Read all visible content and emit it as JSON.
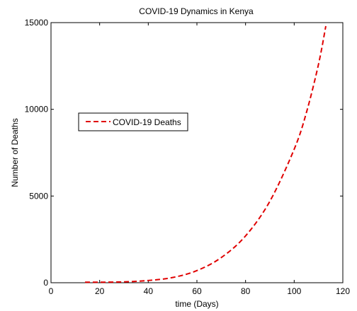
{
  "chart_data": {
    "type": "line",
    "title": "COVID-19 Dynamics in Kenya",
    "xlabel": "time (Days)",
    "ylabel": "Number of Deaths",
    "xlim": [
      0,
      120
    ],
    "ylim": [
      0,
      15000
    ],
    "xticks": [
      0,
      20,
      40,
      60,
      80,
      100,
      120
    ],
    "yticks": [
      0,
      5000,
      10000,
      15000
    ],
    "xtick_labels": [
      "0",
      "20",
      "40",
      "60",
      "80",
      "100",
      "120"
    ],
    "ytick_labels": [
      "0",
      "5000",
      "10000",
      "15000"
    ],
    "grid": false,
    "legend_position": "upper-left",
    "series": [
      {
        "name": "COVID-19 Deaths",
        "color": "#e00000",
        "line_style": "dashed",
        "x": [
          14,
          20,
          30,
          40,
          50,
          60,
          70,
          80,
          90,
          100,
          105,
          110,
          113
        ],
        "y": [
          30,
          30,
          50,
          130,
          300,
          700,
          1450,
          2700,
          4700,
          7700,
          9800,
          12600,
          14800
        ]
      }
    ]
  }
}
